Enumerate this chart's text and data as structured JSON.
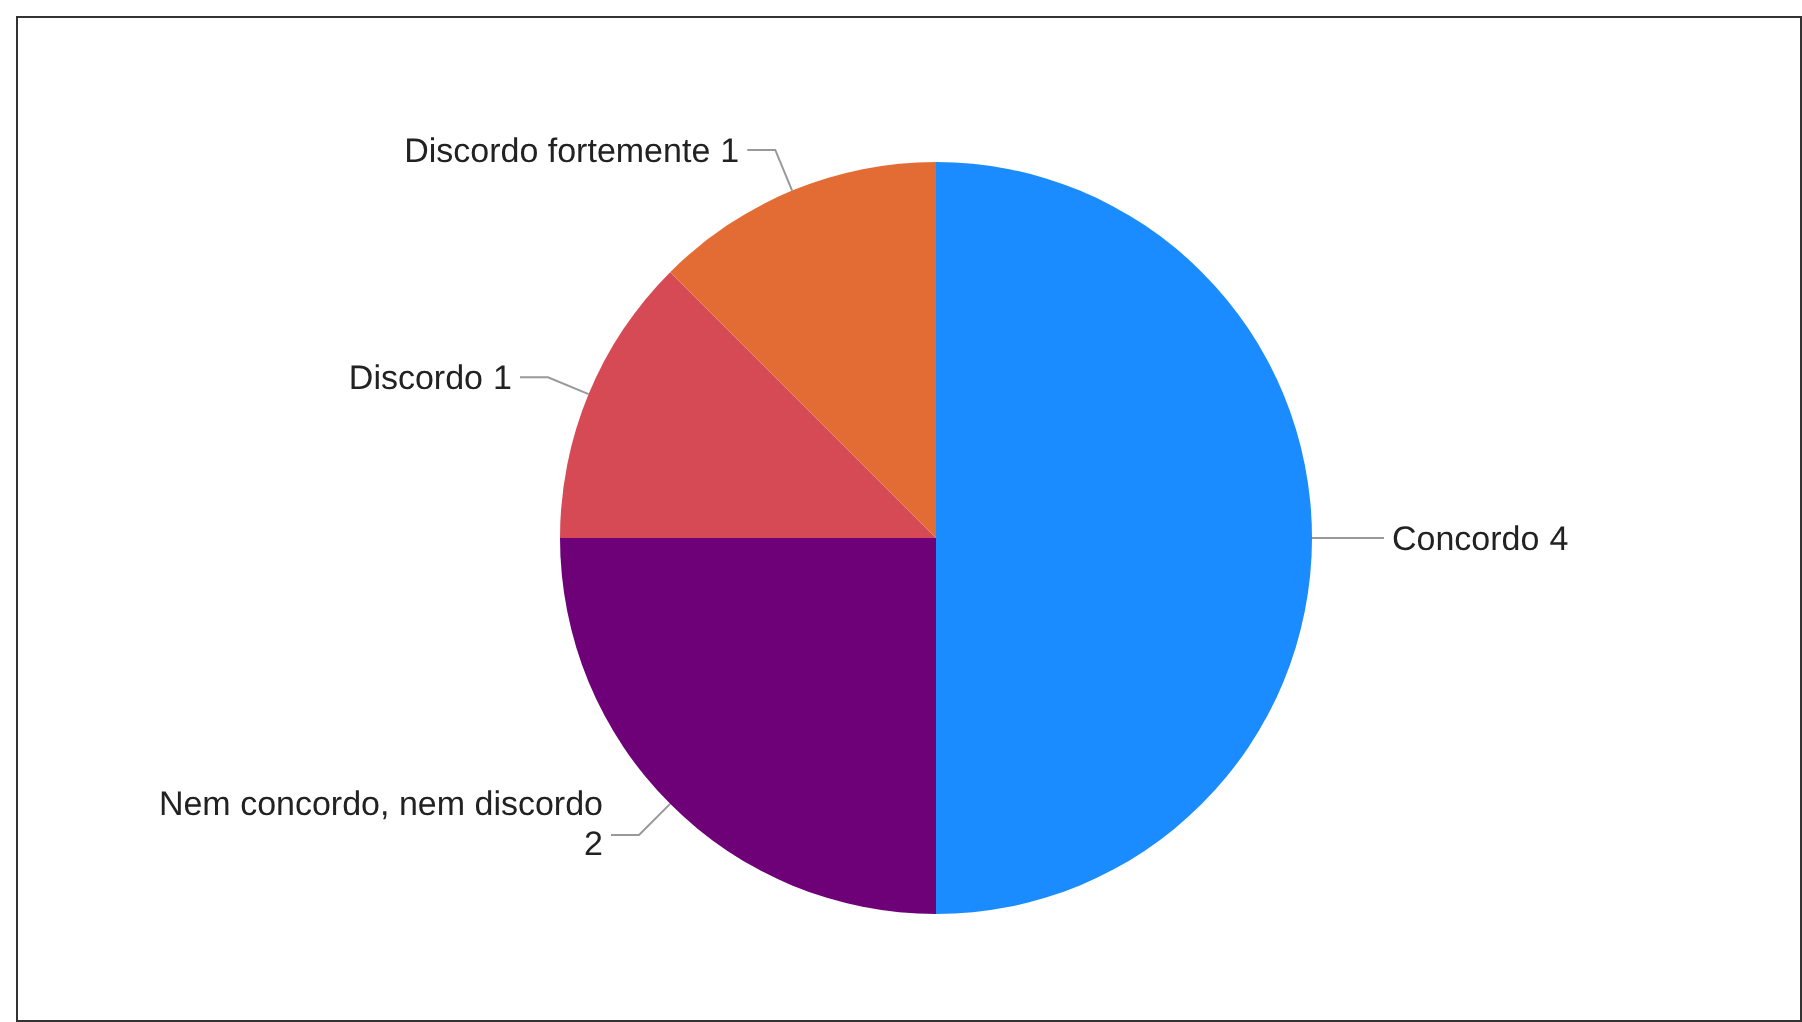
{
  "chart_data": {
    "type": "pie",
    "categories": [
      "Concordo",
      "Nem concordo, nem discordo",
      "Discordo",
      "Discordo fortemente"
    ],
    "values": [
      4,
      2,
      1,
      1
    ],
    "colors": [
      "#1a8cff",
      "#6e0078",
      "#d64a55",
      "#e36c35"
    ],
    "data_labels": true,
    "legend": false
  }
}
